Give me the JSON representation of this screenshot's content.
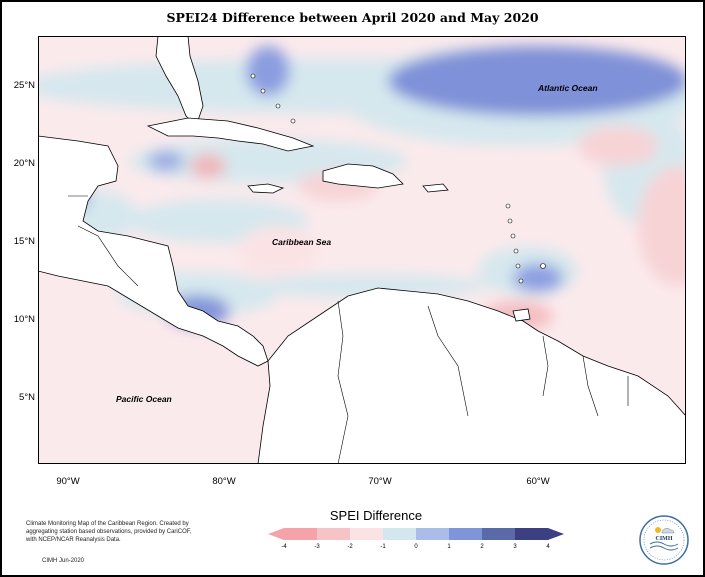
{
  "title": "SPEI24 Difference between April 2020 and May 2020",
  "map": {
    "labels": {
      "atlantic": "Atlantic Ocean",
      "caribbean": "Caribbean Sea",
      "pacific": "Pacific Ocean"
    },
    "lat_ticks": [
      "25°N",
      "20°N",
      "15°N",
      "10°N",
      "5°N"
    ],
    "lon_ticks": [
      "90°W",
      "80°W",
      "70°W",
      "60°W"
    ]
  },
  "legend": {
    "title": "SPEI Difference",
    "labels": [
      "-4",
      "-3",
      "-2",
      "-1",
      "0",
      "1",
      "2",
      "3",
      "4"
    ],
    "colors": [
      "#f4a3a8",
      "#f6c3c6",
      "#fbe3e5",
      "#d3e7ee",
      "#a9bde8",
      "#7e95d8",
      "#5a6aa8",
      "#3c3f80"
    ]
  },
  "credits": {
    "text": "Climate Monitoring Map of the Caribbean Region. Created by aggregating station based observations, provided by CariCOF, with NCEP/NCAR Reanalysis Data.",
    "date": "CIMH Jun-2020"
  },
  "logo": {
    "text": "CIMH"
  }
}
